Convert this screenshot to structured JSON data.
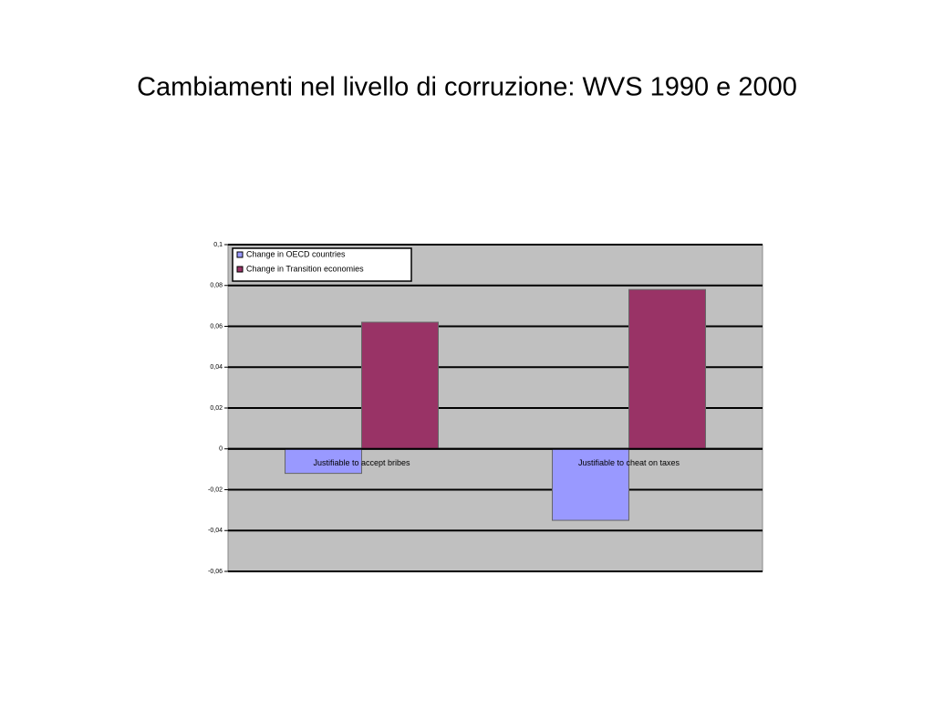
{
  "chart_data": {
    "type": "bar",
    "title": "Cambiamenti nel livello di corruzione: WVS 1990 e 2000",
    "categories": [
      "Justifiable to accept bribes",
      "Justifiable to cheat on taxes"
    ],
    "series": [
      {
        "name": "Change in OECD countries",
        "color": "#9999ff",
        "values": [
          -0.012,
          -0.035
        ]
      },
      {
        "name": "Change in Transition economies",
        "color": "#993366",
        "values": [
          0.062,
          0.078
        ]
      }
    ],
    "ylim": [
      -0.06,
      0.1
    ],
    "yticks": [
      {
        "value": -0.06,
        "label": "-0,06"
      },
      {
        "value": -0.04,
        "label": "-0,04"
      },
      {
        "value": -0.02,
        "label": "-0,02"
      },
      0,
      {
        "value": 0.02,
        "label": "0,02"
      },
      {
        "value": 0.04,
        "label": "0,04"
      },
      {
        "value": 0.06,
        "label": "0,06"
      },
      {
        "value": 0.08,
        "label": "0,08"
      },
      {
        "value": 0.1,
        "label": "0,1"
      }
    ],
    "grid": true,
    "legend": "top-left"
  }
}
